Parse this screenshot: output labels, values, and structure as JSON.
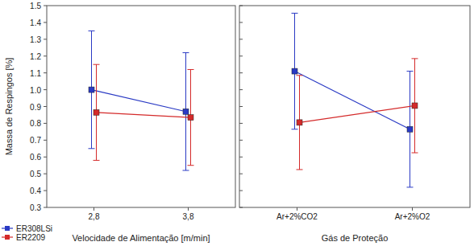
{
  "chart_data": [
    {
      "type": "line",
      "x_label": "Velocidade de Alimentação [m/min]",
      "y_label": "Massa de Respingos [%]",
      "categories": [
        "2,8",
        "3,8"
      ],
      "series": [
        {
          "name": "ER308LSi",
          "color": "#2a3ac4",
          "marker": "square",
          "line_style": "solid",
          "values": [
            1.0,
            0.87
          ],
          "errors": [
            0.35,
            0.35
          ]
        },
        {
          "name": "ER2209",
          "color": "#d42a2a",
          "marker": "square",
          "line_style": "solid",
          "values": [
            0.865,
            0.835
          ],
          "errors": [
            0.285,
            0.285
          ]
        }
      ],
      "ylim": [
        0.3,
        1.5
      ],
      "yticks": [
        0.3,
        0.4,
        0.5,
        0.6,
        0.7,
        0.8,
        0.9,
        {
          "value": 1,
          "label": "1.0"
        },
        1.1,
        1.2,
        1.3,
        1.4,
        1.5
      ],
      "grid": false,
      "legend": "lower left"
    },
    {
      "type": "line",
      "x_label": "Gás de Proteção",
      "categories": [
        "Ar+2%CO2",
        "Ar+2%O2"
      ],
      "series": [
        {
          "name": "ER308LSi",
          "color": "#2a3ac4",
          "marker": "square",
          "line_style": "solid",
          "values": [
            1.11,
            0.765
          ],
          "errors": [
            0.345,
            0.345
          ]
        },
        {
          "name": "ER2209",
          "color": "#d42a2a",
          "marker": "square",
          "line_style": "solid",
          "values": [
            0.805,
            0.905
          ],
          "errors": [
            0.28,
            0.28
          ]
        }
      ],
      "ylim": [
        0.3,
        1.5
      ],
      "yticks": [
        0.3,
        0.4,
        0.5,
        0.6,
        0.7,
        0.8,
        0.9,
        {
          "value": 1,
          "label": "1.0"
        },
        1.1,
        1.2,
        1.3,
        1.4,
        1.5
      ],
      "grid": false,
      "tick_labels": "x"
    }
  ]
}
